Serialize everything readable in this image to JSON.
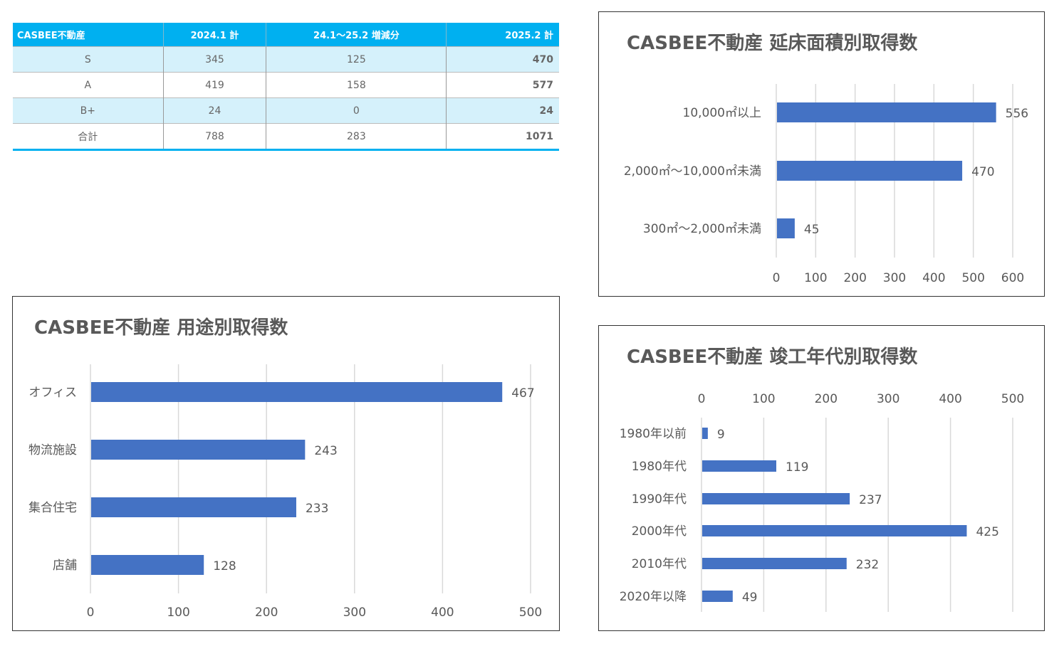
{
  "table": {
    "headers": [
      "CASBEE不動産",
      "2024.1 計",
      "24.1～25.2 増減分",
      "2025.2 計"
    ],
    "rows": [
      [
        "S",
        "345",
        "125",
        "470"
      ],
      [
        "A",
        "419",
        "158",
        "577"
      ],
      [
        "B+",
        "24",
        "0",
        "24"
      ],
      [
        "合計",
        "788",
        "283",
        "1071"
      ]
    ]
  },
  "colors": {
    "bar": "#4472c4",
    "header": "#00b0f0",
    "grid": "#d9d9d9",
    "text": "#595959"
  },
  "chart_data": [
    {
      "type": "bar",
      "title": "CASBEE不動産 延床面積別取得数",
      "categories": [
        "10,000㎡以上",
        "2,000㎡～10,000㎡未満",
        "300㎡～2,000㎡未満"
      ],
      "values": [
        556,
        470,
        45
      ],
      "xlim": [
        0,
        600
      ],
      "ticks": [
        0,
        100,
        200,
        300,
        400,
        500,
        600
      ],
      "axis_position": "bottom",
      "grid": true
    },
    {
      "type": "bar",
      "title": "CASBEE不動産 用途別取得数",
      "categories": [
        "オフィス",
        "物流施設",
        "集合住宅",
        "店舗"
      ],
      "values": [
        467,
        243,
        233,
        128
      ],
      "xlim": [
        0,
        500
      ],
      "ticks": [
        0,
        100,
        200,
        300,
        400,
        500
      ],
      "axis_position": "bottom",
      "grid": true
    },
    {
      "type": "bar",
      "title": "CASBEE不動産 竣工年代別取得数",
      "categories": [
        "1980年以前",
        "1980年代",
        "1990年代",
        "2000年代",
        "2010年代",
        "2020年以降"
      ],
      "values": [
        9,
        119,
        237,
        425,
        232,
        49
      ],
      "xlim": [
        0,
        500
      ],
      "ticks": [
        0,
        100,
        200,
        300,
        400,
        500
      ],
      "axis_position": "top",
      "grid": true
    }
  ]
}
